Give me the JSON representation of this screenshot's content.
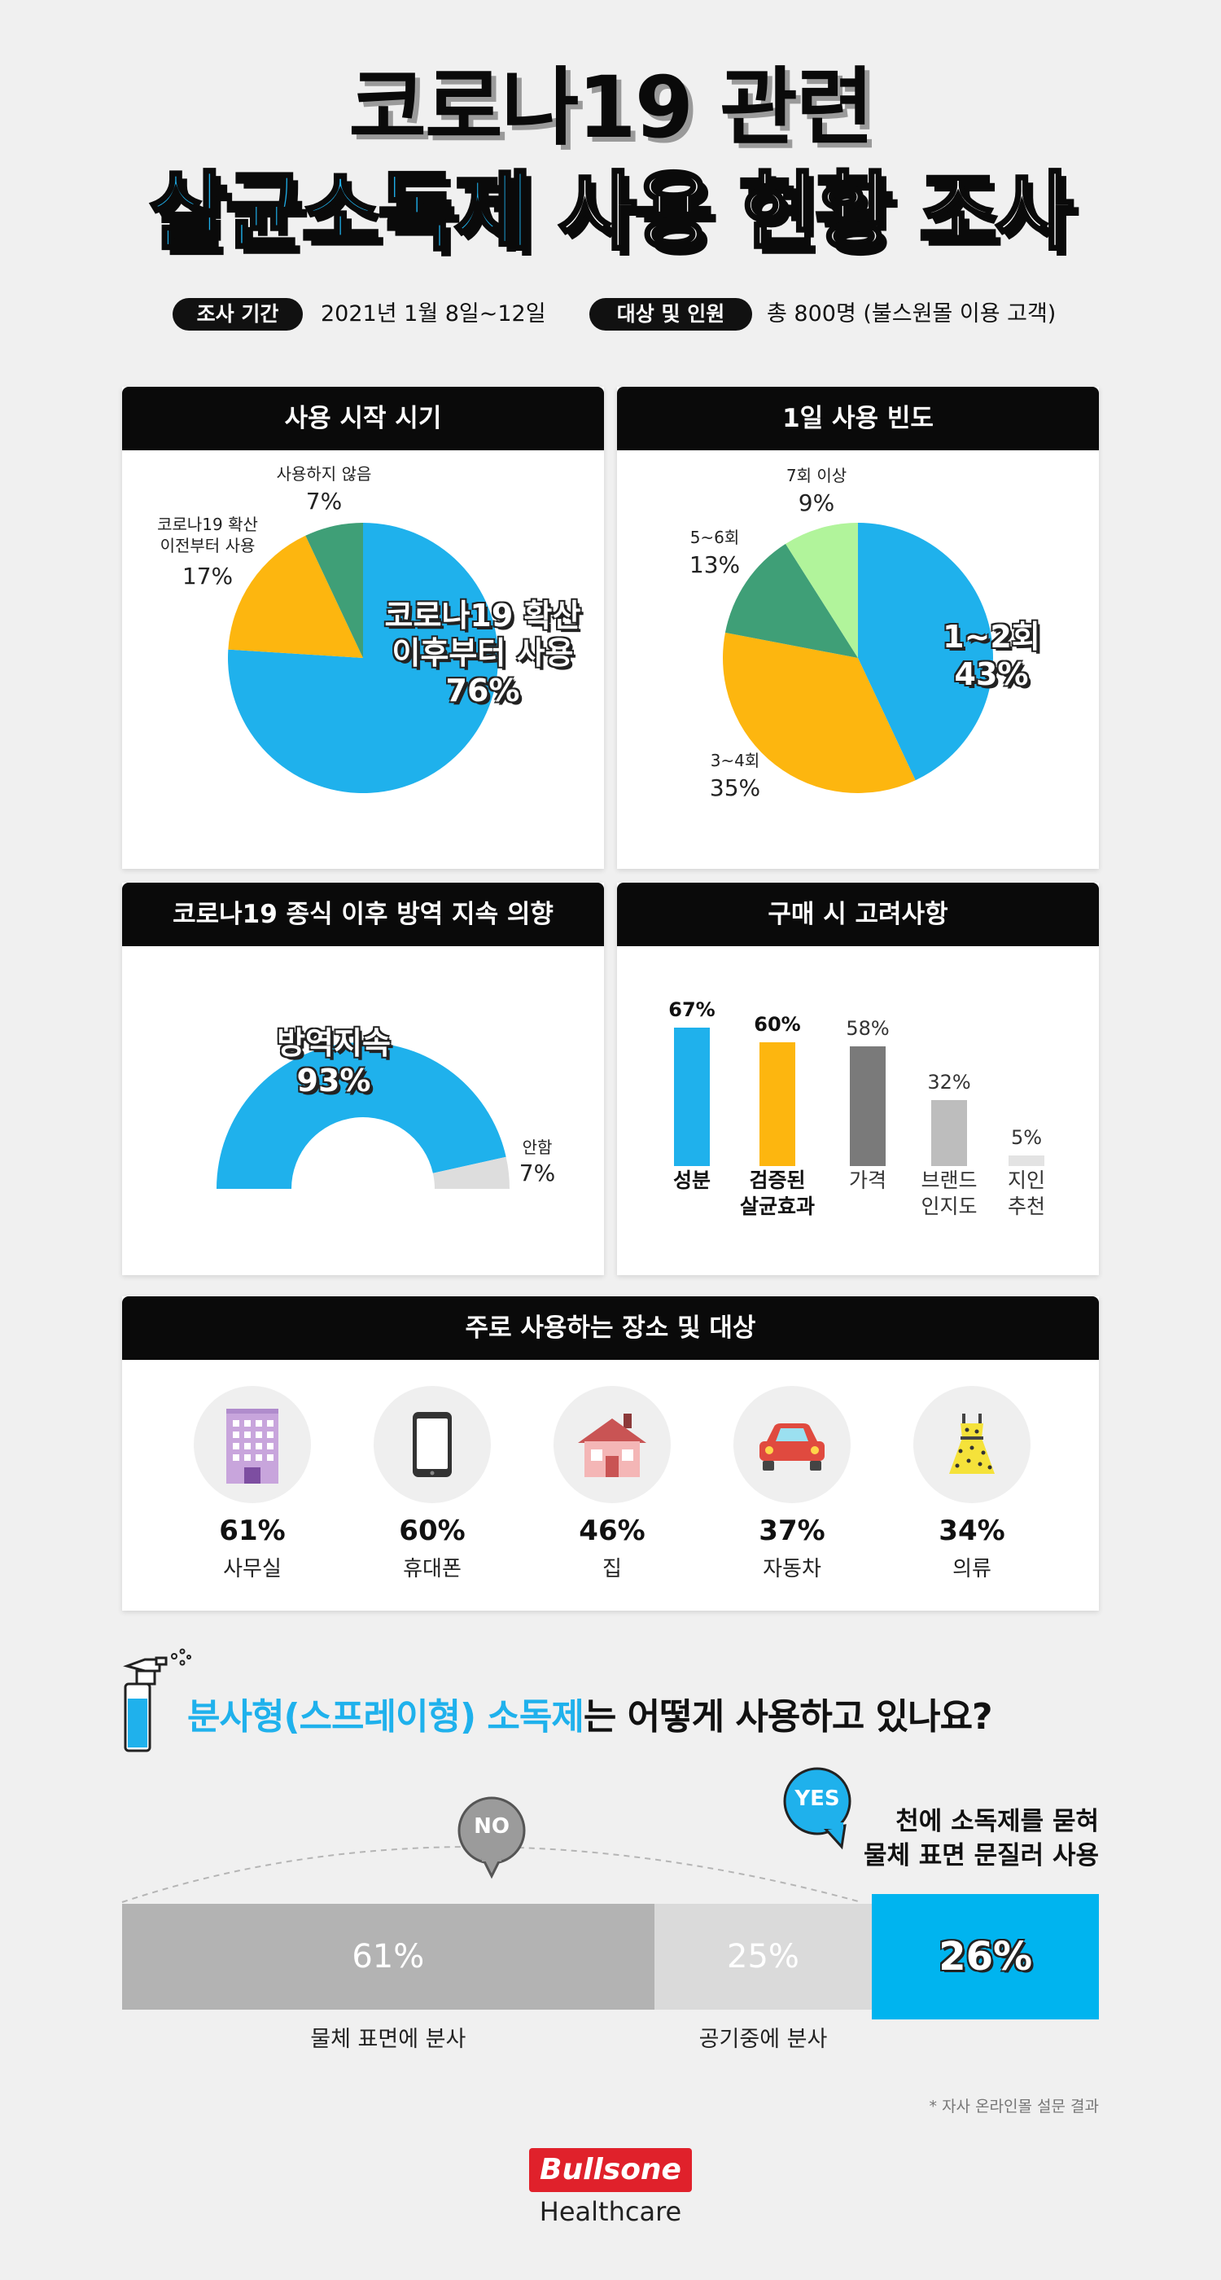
{
  "title": {
    "line1": "코로나19 관련",
    "line2_highlight": "살균소독제",
    "line2_rest": "사용 현황 조사"
  },
  "meta": {
    "period_label": "조사 기간",
    "period_value": "2021년 1월 8일~12일",
    "target_label": "대상 및 인원",
    "target_value": "총 800명 (불스원몰 이용 고객)"
  },
  "colors": {
    "blue": "#1fb1ec",
    "yellow": "#fdb60f",
    "green": "#3f9f77",
    "lightgreen": "#b1f49b",
    "gray": "#7a7a7a",
    "lightgray": "#bdbdbd",
    "bar_gray_a": "#b3b3b3",
    "bar_gray_b": "#dadada"
  },
  "chart_data": [
    {
      "type": "pie",
      "title": "사용 시작 시기",
      "slices": [
        {
          "label": "코로나19 확산 이후부터 사용",
          "value": 76,
          "display": "76%"
        },
        {
          "label": "코로나19 확산 이전부터 사용",
          "value": 17,
          "display": "17%"
        },
        {
          "label": "사용하지 않음",
          "value": 7,
          "display": "7%"
        }
      ],
      "label_lines": {
        "big": [
          "코로나19 확산",
          "이후부터 사용"
        ],
        "before": [
          "코로나19 확산",
          "이전부터 사용"
        ]
      }
    },
    {
      "type": "pie",
      "title": "1일 사용 빈도",
      "slices": [
        {
          "label": "1~2회",
          "value": 43,
          "display": "43%"
        },
        {
          "label": "3~4회",
          "value": 35,
          "display": "35%"
        },
        {
          "label": "5~6회",
          "value": 13,
          "display": "13%"
        },
        {
          "label": "7회 이상",
          "value": 9,
          "display": "9%"
        }
      ]
    },
    {
      "type": "pie",
      "title": "코로나19 종식 이후 방역 지속 의향",
      "slices": [
        {
          "label": "방역지속",
          "value": 93,
          "display": "93%"
        },
        {
          "label": "안함",
          "value": 7,
          "display": "7%"
        }
      ]
    },
    {
      "type": "bar",
      "title": "구매 시 고려사항",
      "categories": [
        [
          "성분"
        ],
        [
          "검증된",
          "살균효과"
        ],
        [
          "가격"
        ],
        [
          "브랜드",
          "인지도"
        ],
        [
          "지인",
          "추천"
        ]
      ],
      "values": [
        67,
        60,
        58,
        32,
        5
      ],
      "displays": [
        "67%",
        "60%",
        "58%",
        "32%",
        "5%"
      ]
    },
    {
      "type": "table",
      "title": "주로 사용하는 장소 및 대상",
      "categories": [
        "사무실",
        "휴대폰",
        "집",
        "자동차",
        "의류"
      ],
      "values": [
        61,
        60,
        46,
        37,
        34
      ],
      "displays": [
        "61%",
        "60%",
        "46%",
        "37%",
        "34%"
      ],
      "icons": [
        "office-building-icon",
        "smartphone-icon",
        "house-icon",
        "car-icon",
        "clothing-icon"
      ]
    },
    {
      "type": "bar",
      "title": "분사형(스프레이형) 소독제는 어떻게 사용하고 있나요?",
      "categories": [
        "물체 표면에 분사",
        "공기중에 분사",
        "천에 소독제를 묻혀 물체 표면 문질러 사용"
      ],
      "values": [
        61,
        25,
        26
      ],
      "displays": [
        "61%",
        "25%",
        "26%"
      ]
    }
  ],
  "spray": {
    "question_highlight": "분사형(스프레이형) 소독제",
    "question_rest": "는 어떻게 사용하고 있나요?",
    "no_badge": "NO",
    "yes_badge": "YES",
    "yes_text_line1": "천에 소독제를 묻혀",
    "yes_text_line2": "물체 표면 문질러 사용"
  },
  "footnote": "* 자사 온라인몰 설문 결과",
  "brand": {
    "line1": "Bullsone",
    "line2": "Healthcare"
  }
}
